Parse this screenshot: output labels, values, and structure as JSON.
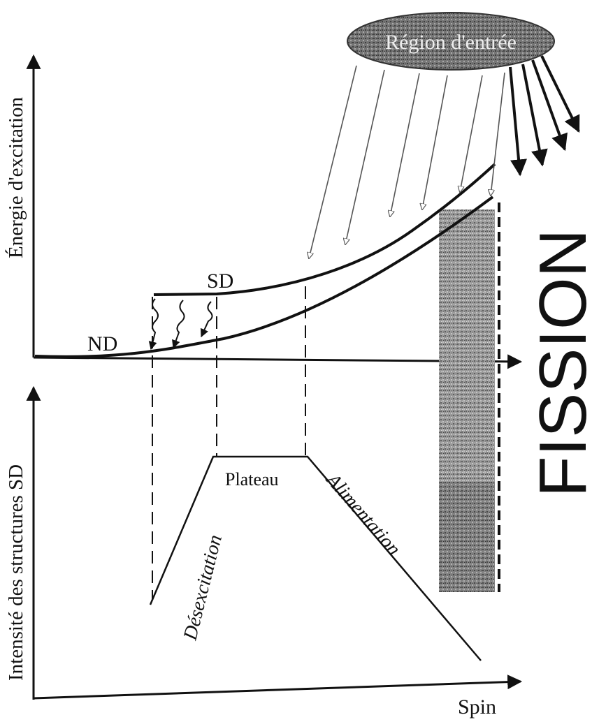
{
  "top_panel": {
    "y_axis_label": "Énergie d'excitation",
    "curve_label_nd": "ND",
    "curve_label_sd": "SD",
    "entry_region_label": "Région d'entrée"
  },
  "bottom_panel": {
    "y_axis_label": "Intensité des structures SD",
    "x_axis_label": "Spin",
    "plateau_label": "Plateau",
    "desexcitation_label": "Désexcitation",
    "alimentation_label": "Alimentation"
  },
  "fission_label": "FISSION",
  "colors": {
    "ink": "#111111",
    "fission_band": "#8a8a8a",
    "entry_region": "#6e6e6e"
  }
}
